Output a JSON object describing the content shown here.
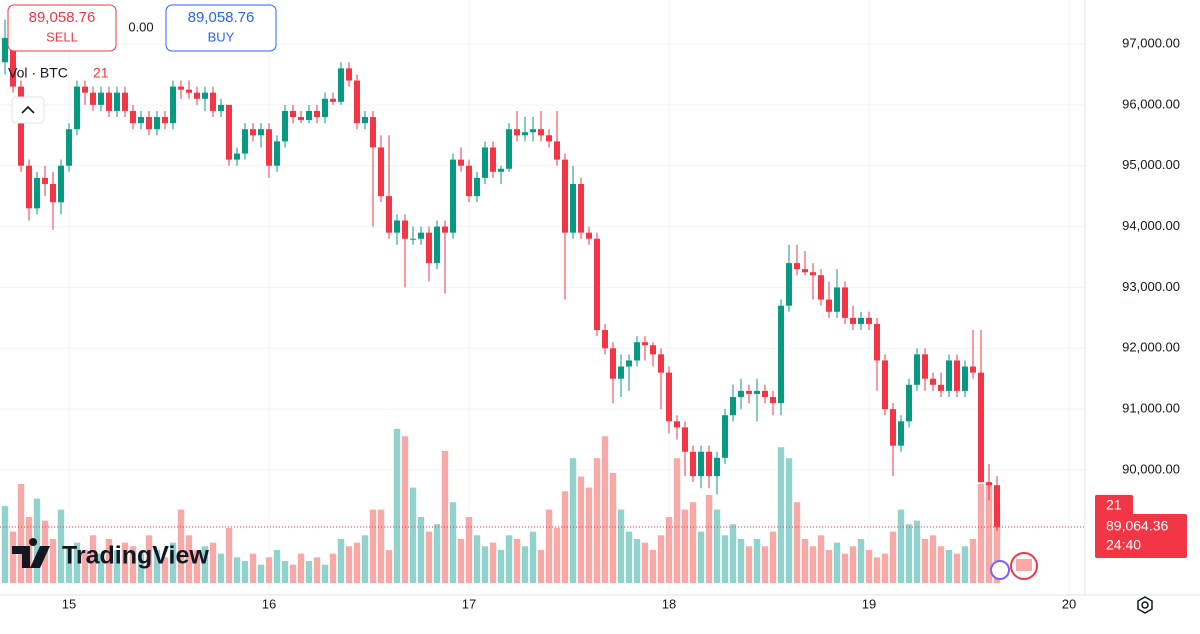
{
  "chart_data": {
    "type": "candlestick",
    "sell_price": "89,058.76",
    "sell_label": "SELL",
    "spread": "0.00",
    "buy_price": "89,058.76",
    "buy_label": "BUY",
    "volume_legend": "Vol · BTC",
    "volume_legend_value": "21",
    "logo": "TradingView",
    "last_close_label": "89,064.36",
    "countdown": "24:40",
    "last_volume_label": "21",
    "up_color": "#089981",
    "down_color": "#f23645",
    "volume_up_color": "#92d2cc",
    "volume_down_color": "#f7a9a7",
    "grid": true,
    "xlim": [
      14.655,
      20.08
    ],
    "xticks": [
      15,
      16,
      17,
      18,
      19,
      20
    ],
    "ylim": [
      87946,
      97723
    ],
    "yticks": [
      {
        "value": 90000,
        "label": "90,000.00"
      },
      {
        "value": 91000,
        "label": "91,000.00"
      },
      {
        "value": 92000,
        "label": "92,000.00"
      },
      {
        "value": 93000,
        "label": "93,000.00"
      },
      {
        "value": 94000,
        "label": "94,000.00"
      },
      {
        "value": 95000,
        "label": "95,000.00"
      },
      {
        "value": 96000,
        "label": "96,000.00"
      },
      {
        "value": 97000,
        "label": "97,000.00"
      }
    ],
    "x": [
      14.68,
      14.72,
      14.76,
      14.8,
      14.84,
      14.88,
      14.92,
      14.96,
      15,
      15.04,
      15.08,
      15.12,
      15.16,
      15.2,
      15.24,
      15.28,
      15.32,
      15.36,
      15.4,
      15.44,
      15.48,
      15.52,
      15.56,
      15.6,
      15.64,
      15.68,
      15.72,
      15.76,
      15.8,
      15.84,
      15.88,
      15.92,
      15.96,
      16,
      16.04,
      16.08,
      16.12,
      16.16,
      16.2,
      16.24,
      16.28,
      16.32,
      16.36,
      16.4,
      16.44,
      16.48,
      16.52,
      16.56,
      16.6,
      16.64,
      16.68,
      16.72,
      16.76,
      16.8,
      16.84,
      16.88,
      16.92,
      16.96,
      17,
      17.04,
      17.08,
      17.12,
      17.16,
      17.2,
      17.24,
      17.28,
      17.32,
      17.36,
      17.4,
      17.44,
      17.48,
      17.52,
      17.56,
      17.6,
      17.64,
      17.68,
      17.72,
      17.76,
      17.8,
      17.84,
      17.88,
      17.92,
      17.96,
      18,
      18.04,
      18.08,
      18.12,
      18.16,
      18.2,
      18.24,
      18.28,
      18.32,
      18.36,
      18.4,
      18.44,
      18.48,
      18.52,
      18.56,
      18.6,
      18.64,
      18.68,
      18.72,
      18.76,
      18.8,
      18.84,
      18.88,
      18.92,
      18.96,
      19,
      19.04,
      19.08,
      19.12,
      19.16,
      19.2,
      19.24,
      19.28,
      19.32,
      19.36,
      19.4,
      19.44,
      19.48,
      19.52,
      19.56,
      19.6,
      19.64
    ],
    "open": [
      96700,
      97100,
      96300,
      95000,
      94300,
      94800,
      94700,
      94400,
      95000,
      95600,
      96300,
      96200,
      96000,
      96200,
      95900,
      96200,
      95900,
      95700,
      95800,
      95600,
      95800,
      95700,
      96300,
      96250,
      96200,
      96100,
      96200,
      95900,
      96000,
      95100,
      95200,
      95600,
      95500,
      95600,
      95000,
      95400,
      95900,
      95800,
      95750,
      95900,
      95800,
      96100,
      96050,
      96600,
      96400,
      95700,
      95800,
      95300,
      94500,
      93900,
      94100,
      93800,
      93800,
      93900,
      93400,
      94000,
      93900,
      95100,
      95000,
      94500,
      94800,
      95300,
      94900,
      94950,
      95600,
      95500,
      95550,
      95600,
      95500,
      95400,
      95100,
      93900,
      94700,
      93900,
      93800,
      92300,
      92000,
      91500,
      91700,
      91800,
      92100,
      92050,
      91900,
      91600,
      90800,
      90700,
      90300,
      89900,
      90300,
      89900,
      90200,
      90900,
      91200,
      91300,
      91250,
      91300,
      91200,
      91100,
      92700,
      93400,
      93300,
      93250,
      93200,
      92800,
      92600,
      93000,
      92500,
      92400,
      92500,
      92400,
      91800,
      91000,
      90400,
      90800,
      91400,
      91900,
      91500,
      91400,
      91300,
      91800,
      91300,
      91700,
      91600,
      89800,
      89750
    ],
    "high": [
      97400,
      97200,
      96400,
      95100,
      94900,
      95000,
      94900,
      95100,
      95700,
      96400,
      96400,
      96300,
      96300,
      96300,
      96300,
      96300,
      96000,
      95900,
      95900,
      95900,
      95900,
      96400,
      96400,
      96400,
      96300,
      96300,
      96300,
      96100,
      96000,
      95300,
      95700,
      95700,
      95700,
      95700,
      95500,
      96000,
      96000,
      95900,
      96000,
      96000,
      96200,
      96200,
      96700,
      96700,
      96500,
      95900,
      95900,
      95500,
      95500,
      94200,
      94200,
      94000,
      94000,
      94000,
      94100,
      94100,
      95200,
      95300,
      95100,
      94900,
      95400,
      95400,
      95000,
      95700,
      95900,
      95800,
      95800,
      95900,
      95600,
      95900,
      95200,
      95000,
      94800,
      94000,
      93900,
      92400,
      92100,
      91900,
      91900,
      92200,
      92200,
      92100,
      92000,
      91700,
      90900,
      90800,
      90400,
      90400,
      90400,
      90300,
      91000,
      91400,
      91500,
      91400,
      91500,
      91400,
      91300,
      92800,
      93700,
      93700,
      93600,
      93400,
      93300,
      93100,
      93300,
      93100,
      92700,
      92600,
      92600,
      92500,
      91900,
      91100,
      90900,
      91500,
      92000,
      92000,
      91600,
      91600,
      91900,
      91900,
      91800,
      92300,
      92300,
      90100,
      89900
    ],
    "low": [
      96500,
      96200,
      94900,
      94100,
      94200,
      94500,
      93950,
      94200,
      94900,
      95500,
      96000,
      95900,
      95900,
      95800,
      95800,
      95800,
      95600,
      95600,
      95500,
      95500,
      95600,
      95600,
      96100,
      96100,
      96000,
      95900,
      95800,
      95800,
      95000,
      95000,
      95100,
      95400,
      95300,
      94800,
      94900,
      95300,
      95700,
      95700,
      95700,
      95700,
      95700,
      96000,
      96000,
      96300,
      95600,
      95600,
      94000,
      94400,
      93800,
      93700,
      93000,
      93700,
      93700,
      93100,
      93300,
      92900,
      93800,
      94900,
      94400,
      94400,
      94700,
      94800,
      94700,
      94900,
      95400,
      95400,
      95400,
      95400,
      95300,
      95000,
      92800,
      93800,
      93800,
      93700,
      92200,
      91900,
      91100,
      91200,
      91300,
      91700,
      91800,
      91700,
      91000,
      90600,
      90500,
      89900,
      89800,
      89700,
      89700,
      89600,
      90100,
      90800,
      91000,
      91100,
      90800,
      91100,
      90900,
      90900,
      92600,
      93200,
      93200,
      92800,
      92700,
      92500,
      92500,
      92400,
      92300,
      92300,
      92300,
      91300,
      90900,
      89900,
      90300,
      90700,
      91300,
      91300,
      91300,
      91200,
      91200,
      91200,
      91200,
      91500,
      89800,
      89500,
      89000
    ],
    "close": [
      97100,
      96300,
      95000,
      94300,
      94800,
      94700,
      94400,
      95000,
      95600,
      96300,
      96200,
      96000,
      96200,
      95900,
      96200,
      95900,
      95700,
      95800,
      95600,
      95800,
      95700,
      96300,
      96250,
      96200,
      96100,
      96200,
      95900,
      96000,
      95100,
      95200,
      95600,
      95500,
      95600,
      95000,
      95400,
      95900,
      95800,
      95750,
      95900,
      95800,
      96100,
      96050,
      96600,
      96400,
      95700,
      95800,
      95300,
      94500,
      93900,
      94100,
      93800,
      93800,
      93900,
      93400,
      94000,
      93900,
      95100,
      95000,
      94500,
      94800,
      95300,
      94900,
      94950,
      95600,
      95500,
      95550,
      95600,
      95500,
      95400,
      95100,
      93900,
      94700,
      93900,
      93800,
      92300,
      92000,
      91500,
      91700,
      91800,
      92100,
      92050,
      91900,
      91600,
      90800,
      90700,
      90300,
      89900,
      90300,
      89900,
      90200,
      90900,
      91200,
      91300,
      91250,
      91300,
      91200,
      91100,
      92700,
      93400,
      93300,
      93250,
      93200,
      92800,
      92600,
      93000,
      92500,
      92400,
      92500,
      92400,
      91800,
      91000,
      90400,
      90800,
      91400,
      91900,
      91500,
      91400,
      91300,
      91800,
      91300,
      91700,
      91600,
      89800,
      89750,
      89064.36
    ],
    "volume": [
      21,
      14,
      27,
      18,
      23,
      17,
      12,
      20,
      10,
      11,
      9,
      13,
      8,
      12,
      9,
      11,
      10,
      8,
      13,
      9,
      7,
      11,
      20,
      13,
      9,
      10,
      11,
      8,
      15,
      7,
      6,
      8,
      5,
      7,
      9,
      6,
      5,
      8,
      6,
      7,
      5,
      8,
      12,
      10,
      11,
      13,
      20,
      20,
      9,
      42,
      40,
      26,
      18,
      14,
      16,
      36,
      22,
      12,
      18,
      13,
      10,
      11,
      9,
      13,
      12,
      10,
      14,
      9,
      20,
      15,
      25,
      34,
      29,
      26,
      34,
      40,
      30,
      20,
      14,
      12,
      11,
      9,
      13,
      18,
      34,
      20,
      22,
      14,
      24,
      20,
      13,
      16,
      12,
      10,
      12,
      10,
      14,
      37,
      34,
      22,
      12,
      10,
      13,
      9,
      11,
      8,
      10,
      12,
      9,
      7,
      8,
      14,
      20,
      16,
      17,
      12,
      13,
      10,
      9,
      8,
      10,
      12,
      27,
      27,
      21
    ]
  }
}
